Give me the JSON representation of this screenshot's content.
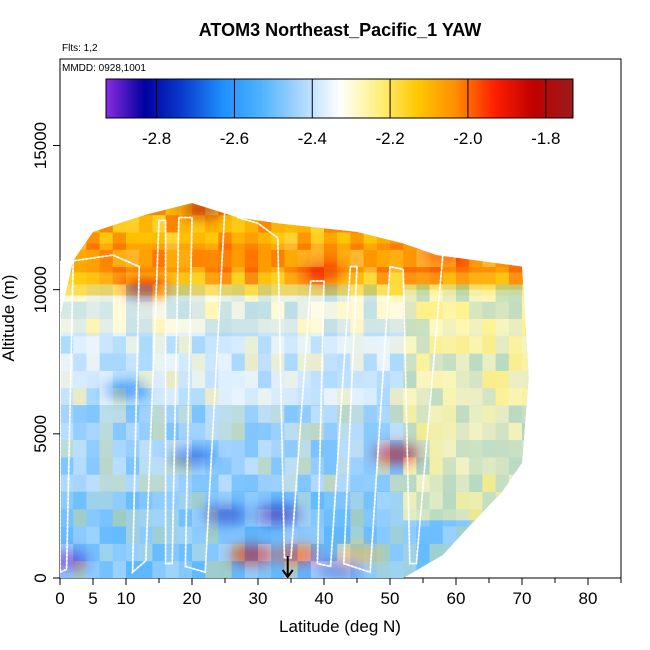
{
  "chart_data": {
    "type": "heatmap",
    "title": "ATOM3 Northeast_Pacific_1 YAW",
    "annotations": {
      "flights": "Flts: 1,2",
      "dates": "MMDD: 0928,1001"
    },
    "xlabel": "Latitude (deg N)",
    "ylabel": "Altitude (m)",
    "xlim": [
      0,
      85
    ],
    "ylim": [
      0,
      18000
    ],
    "x_ticks": [
      0,
      5,
      10,
      20,
      30,
      40,
      50,
      60,
      70,
      80
    ],
    "y_ticks": [
      0,
      5000,
      10000,
      15000
    ],
    "colorbar": {
      "range": [
        -2.93,
        -1.73
      ],
      "ticks": [
        "-2.8",
        "-2.6",
        "-2.4",
        "-2.2",
        "-2.0",
        "-1.8"
      ],
      "tick_values": [
        -2.8,
        -2.6,
        -2.4,
        -2.2,
        -2.0,
        -1.8
      ],
      "colors": [
        "#8a2be2",
        "#0000a0",
        "#0a3ed0",
        "#1e90ff",
        "#4fb4ff",
        "#a9d6ff",
        "#ffffff",
        "#fff080",
        "#ffc800",
        "#ff8c00",
        "#ff1e00",
        "#c00000",
        "#9a1c1c"
      ]
    },
    "coverage_envelope": [
      [
        0,
        0
      ],
      [
        0,
        9000
      ],
      [
        2,
        11000
      ],
      [
        5,
        12000
      ],
      [
        13,
        12600
      ],
      [
        20,
        13000
      ],
      [
        27,
        12500
      ],
      [
        33,
        12300
      ],
      [
        45,
        12000
      ],
      [
        52,
        11600
      ],
      [
        57,
        11200
      ],
      [
        70,
        10800
      ],
      [
        71,
        7000
      ],
      [
        70,
        4000
      ],
      [
        67,
        3000
      ],
      [
        62,
        1800
      ],
      [
        58,
        800
      ],
      [
        52,
        0
      ]
    ],
    "anomalies": [
      {
        "lat": 21.5,
        "alt": 12800,
        "value": -1.78
      },
      {
        "lat": 13,
        "alt": 10100,
        "value": -1.9
      },
      {
        "lat": 29,
        "alt": 800,
        "value": -1.85
      },
      {
        "lat": 36,
        "alt": 800,
        "value": -1.95
      },
      {
        "lat": 45,
        "alt": 800,
        "value": -2.1
      },
      {
        "lat": 33,
        "alt": 2200,
        "value": -2.85
      },
      {
        "lat": 25,
        "alt": 2200,
        "value": -2.75
      },
      {
        "lat": 42,
        "alt": 300,
        "value": -2.7
      },
      {
        "lat": 51,
        "alt": 4300,
        "value": -1.85
      },
      {
        "lat": 58,
        "alt": 11200,
        "value": -1.95
      },
      {
        "lat": 40,
        "alt": 10600,
        "value": -1.9
      },
      {
        "lat": 10,
        "alt": 6500,
        "value": -2.65
      },
      {
        "lat": 20,
        "alt": 4200,
        "value": -2.7
      },
      {
        "lat": 1,
        "alt": 600,
        "value": -2.9
      }
    ],
    "flight_track": [
      [
        0,
        11000
      ],
      [
        0,
        200
      ],
      [
        1,
        300
      ],
      [
        2,
        11000
      ],
      [
        8,
        11200
      ],
      [
        12,
        10800
      ],
      [
        11,
        200
      ],
      [
        13,
        600
      ],
      [
        15,
        12400
      ],
      [
        16,
        12400
      ],
      [
        16,
        500
      ],
      [
        17,
        500
      ],
      [
        18,
        12500
      ],
      [
        20,
        12500
      ],
      [
        19,
        400
      ],
      [
        22,
        200
      ],
      [
        25,
        12900
      ],
      [
        27,
        12500
      ],
      [
        30,
        12300
      ],
      [
        33,
        11800
      ],
      [
        34,
        700
      ],
      [
        35,
        700
      ],
      [
        38,
        10300
      ],
      [
        40,
        10300
      ],
      [
        39,
        500
      ],
      [
        41,
        400
      ],
      [
        44,
        10800
      ],
      [
        45,
        10800
      ],
      [
        43,
        500
      ],
      [
        47,
        200
      ],
      [
        50,
        10800
      ],
      [
        52,
        10700
      ],
      [
        53,
        500
      ],
      [
        54,
        500
      ],
      [
        58,
        11200
      ],
      [
        70,
        10900
      ]
    ],
    "marker": {
      "lat": 34.5,
      "alt": 0,
      "symbol": "downward-arrow"
    }
  }
}
